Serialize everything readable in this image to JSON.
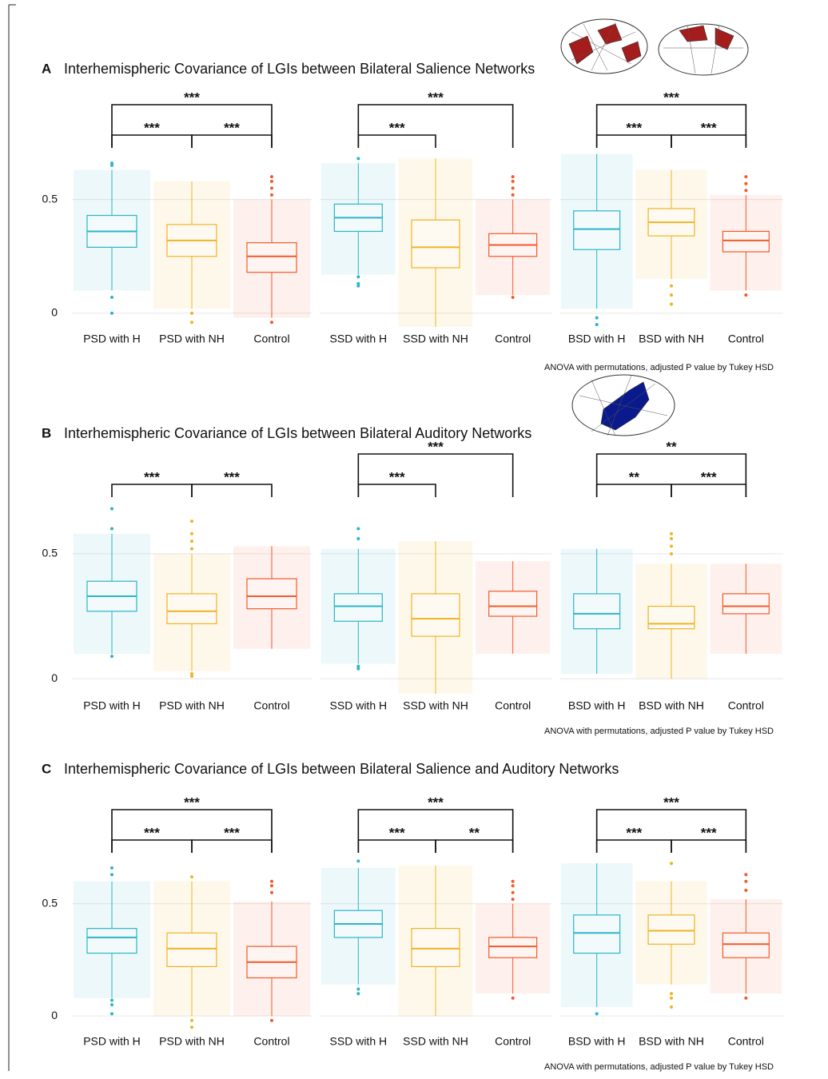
{
  "chart_data": [
    {
      "type": "box",
      "panel_label": "A",
      "title": "Interhemispheric Covariance of LGIs between Bilateral Salience Networks",
      "categories": [
        "PSD with H",
        "PSD with NH",
        "Control"
      ],
      "colors": [
        "#2cb5c9",
        "#f0b323",
        "#f15a2b"
      ],
      "boxes": [
        {
          "low": 0.1,
          "q1": 0.29,
          "median": 0.36,
          "q3": 0.43,
          "high": 0.63,
          "outliers": [
            0.65,
            0.66,
            0.07,
            0.0
          ]
        },
        {
          "low": 0.02,
          "q1": 0.25,
          "median": 0.32,
          "q3": 0.39,
          "high": 0.58,
          "outliers": [
            0.0,
            -0.04
          ]
        },
        {
          "low": -0.02,
          "q1": 0.18,
          "median": 0.25,
          "q3": 0.31,
          "high": 0.5,
          "outliers": [
            0.52,
            0.55,
            0.58,
            0.6,
            -0.04
          ]
        }
      ],
      "brackets": [
        {
          "from": 0,
          "to": 1,
          "label": "***"
        },
        {
          "from": 1,
          "to": 2,
          "label": "***"
        },
        {
          "from": 0,
          "to": 2,
          "label": "***"
        }
      ],
      "ylim": [
        -0.06,
        0.72
      ],
      "yticks": [
        0,
        0.5
      ],
      "grid": true
    },
    {
      "type": "box",
      "categories": [
        "SSD with H",
        "SSD with NH",
        "Control"
      ],
      "colors": [
        "#2cb5c9",
        "#f0b323",
        "#f15a2b"
      ],
      "boxes": [
        {
          "low": 0.17,
          "q1": 0.36,
          "median": 0.42,
          "q3": 0.48,
          "high": 0.66,
          "outliers": [
            0.68,
            0.16,
            0.13,
            0.12
          ]
        },
        {
          "low": -0.06,
          "q1": 0.2,
          "median": 0.29,
          "q3": 0.41,
          "high": 0.68,
          "outliers": []
        },
        {
          "low": 0.08,
          "q1": 0.25,
          "median": 0.3,
          "q3": 0.35,
          "high": 0.5,
          "outliers": [
            0.52,
            0.55,
            0.58,
            0.6,
            0.07
          ]
        }
      ],
      "brackets": [
        {
          "from": 0,
          "to": 1,
          "label": "***"
        },
        {
          "from": 0,
          "to": 2,
          "label": "***"
        }
      ],
      "ylim": [
        -0.06,
        0.72
      ],
      "yticks": [
        0,
        0.5
      ],
      "grid": true
    },
    {
      "type": "box",
      "categories": [
        "BSD with H",
        "BSD with NH",
        "Control"
      ],
      "colors": [
        "#2cb5c9",
        "#f0b323",
        "#f15a2b"
      ],
      "boxes": [
        {
          "low": 0.02,
          "q1": 0.28,
          "median": 0.37,
          "q3": 0.45,
          "high": 0.7,
          "outliers": [
            -0.02,
            -0.05
          ]
        },
        {
          "low": 0.15,
          "q1": 0.34,
          "median": 0.4,
          "q3": 0.46,
          "high": 0.63,
          "outliers": [
            0.12,
            0.08,
            0.04
          ]
        },
        {
          "low": 0.1,
          "q1": 0.27,
          "median": 0.32,
          "q3": 0.36,
          "high": 0.52,
          "outliers": [
            0.54,
            0.57,
            0.6,
            0.08
          ]
        }
      ],
      "brackets": [
        {
          "from": 0,
          "to": 1,
          "label": "***"
        },
        {
          "from": 1,
          "to": 2,
          "label": "***"
        },
        {
          "from": 0,
          "to": 2,
          "label": "***"
        }
      ],
      "ylim": [
        -0.06,
        0.72
      ],
      "yticks": [
        0,
        0.5
      ],
      "grid": true,
      "note": "ANOVA with permutations, adjusted P value by Tukey HSD"
    },
    {
      "type": "box",
      "panel_label": "B",
      "title": "Interhemispheric Covariance of LGIs between Bilateral Auditory Networks",
      "categories": [
        "PSD with H",
        "PSD with NH",
        "Control"
      ],
      "colors": [
        "#2cb5c9",
        "#f0b323",
        "#f15a2b"
      ],
      "boxes": [
        {
          "low": 0.1,
          "q1": 0.27,
          "median": 0.33,
          "q3": 0.39,
          "high": 0.58,
          "outliers": [
            0.6,
            0.68,
            0.09
          ]
        },
        {
          "low": 0.03,
          "q1": 0.22,
          "median": 0.27,
          "q3": 0.34,
          "high": 0.5,
          "outliers": [
            0.52,
            0.55,
            0.58,
            0.63,
            0.02,
            0.01
          ]
        },
        {
          "low": 0.12,
          "q1": 0.28,
          "median": 0.33,
          "q3": 0.4,
          "high": 0.53,
          "outliers": []
        }
      ],
      "brackets": [
        {
          "from": 0,
          "to": 1,
          "label": "***"
        },
        {
          "from": 1,
          "to": 2,
          "label": "***"
        }
      ],
      "ylim": [
        -0.06,
        0.72
      ],
      "yticks": [
        0,
        0.5
      ],
      "grid": true
    },
    {
      "type": "box",
      "categories": [
        "SSD with H",
        "SSD with NH",
        "Control"
      ],
      "colors": [
        "#2cb5c9",
        "#f0b323",
        "#f15a2b"
      ],
      "boxes": [
        {
          "low": 0.06,
          "q1": 0.23,
          "median": 0.29,
          "q3": 0.34,
          "high": 0.52,
          "outliers": [
            0.56,
            0.6,
            0.05,
            0.04
          ]
        },
        {
          "low": -0.06,
          "q1": 0.17,
          "median": 0.24,
          "q3": 0.34,
          "high": 0.55,
          "outliers": []
        },
        {
          "low": 0.1,
          "q1": 0.25,
          "median": 0.29,
          "q3": 0.35,
          "high": 0.47,
          "outliers": []
        }
      ],
      "brackets": [
        {
          "from": 0,
          "to": 1,
          "label": "***"
        },
        {
          "from": 0,
          "to": 2,
          "label": "***"
        }
      ],
      "ylim": [
        -0.06,
        0.72
      ],
      "yticks": [
        0,
        0.5
      ],
      "grid": true
    },
    {
      "type": "box",
      "categories": [
        "BSD with H",
        "BSD with NH",
        "Control"
      ],
      "colors": [
        "#2cb5c9",
        "#f0b323",
        "#f15a2b"
      ],
      "boxes": [
        {
          "low": 0.02,
          "q1": 0.2,
          "median": 0.26,
          "q3": 0.34,
          "high": 0.52,
          "outliers": []
        },
        {
          "low": 0.0,
          "q1": 0.2,
          "median": 0.22,
          "q3": 0.29,
          "high": 0.46,
          "outliers": [
            0.5,
            0.53,
            0.56,
            0.58
          ]
        },
        {
          "low": 0.1,
          "q1": 0.26,
          "median": 0.29,
          "q3": 0.34,
          "high": 0.46,
          "outliers": []
        }
      ],
      "brackets": [
        {
          "from": 0,
          "to": 1,
          "label": "**"
        },
        {
          "from": 1,
          "to": 2,
          "label": "***"
        },
        {
          "from": 0,
          "to": 2,
          "label": "**"
        }
      ],
      "ylim": [
        -0.06,
        0.72
      ],
      "yticks": [
        0,
        0.5
      ],
      "grid": true,
      "note": "ANOVA with permutations, adjusted P value by Tukey HSD"
    },
    {
      "type": "box",
      "panel_label": "C",
      "title": "Interhemispheric Covariance of LGIs between Bilateral Salience and Auditory Networks",
      "categories": [
        "PSD with H",
        "PSD with NH",
        "Control"
      ],
      "colors": [
        "#2cb5c9",
        "#f0b323",
        "#f15a2b"
      ],
      "boxes": [
        {
          "low": 0.08,
          "q1": 0.28,
          "median": 0.35,
          "q3": 0.39,
          "high": 0.6,
          "outliers": [
            0.63,
            0.66,
            0.07,
            0.05,
            0.01
          ]
        },
        {
          "low": 0.0,
          "q1": 0.22,
          "median": 0.3,
          "q3": 0.37,
          "high": 0.6,
          "outliers": [
            0.62,
            -0.02,
            -0.05
          ]
        },
        {
          "low": 0.0,
          "q1": 0.17,
          "median": 0.24,
          "q3": 0.31,
          "high": 0.51,
          "outliers": [
            0.55,
            0.58,
            0.6,
            -0.02
          ]
        }
      ],
      "brackets": [
        {
          "from": 0,
          "to": 1,
          "label": "***"
        },
        {
          "from": 1,
          "to": 2,
          "label": "***"
        },
        {
          "from": 0,
          "to": 2,
          "label": "***"
        }
      ],
      "ylim": [
        -0.06,
        0.72
      ],
      "yticks": [
        0,
        0.5
      ],
      "grid": true
    },
    {
      "type": "box",
      "categories": [
        "SSD with H",
        "SSD with NH",
        "Control"
      ],
      "colors": [
        "#2cb5c9",
        "#f0b323",
        "#f15a2b"
      ],
      "boxes": [
        {
          "low": 0.14,
          "q1": 0.35,
          "median": 0.41,
          "q3": 0.47,
          "high": 0.66,
          "outliers": [
            0.69,
            0.12,
            0.1
          ]
        },
        {
          "low": 0.0,
          "q1": 0.22,
          "median": 0.3,
          "q3": 0.39,
          "high": 0.67,
          "outliers": []
        },
        {
          "low": 0.1,
          "q1": 0.26,
          "median": 0.31,
          "q3": 0.35,
          "high": 0.5,
          "outliers": [
            0.52,
            0.55,
            0.58,
            0.6,
            0.08
          ]
        }
      ],
      "brackets": [
        {
          "from": 0,
          "to": 1,
          "label": "***"
        },
        {
          "from": 1,
          "to": 2,
          "label": "**"
        },
        {
          "from": 0,
          "to": 2,
          "label": "***"
        }
      ],
      "ylim": [
        -0.06,
        0.72
      ],
      "yticks": [
        0,
        0.5
      ],
      "grid": true
    },
    {
      "type": "box",
      "categories": [
        "BSD with H",
        "BSD with NH",
        "Control"
      ],
      "colors": [
        "#2cb5c9",
        "#f0b323",
        "#f15a2b"
      ],
      "boxes": [
        {
          "low": 0.04,
          "q1": 0.28,
          "median": 0.37,
          "q3": 0.45,
          "high": 0.68,
          "outliers": [
            0.01
          ]
        },
        {
          "low": 0.14,
          "q1": 0.32,
          "median": 0.38,
          "q3": 0.45,
          "high": 0.6,
          "outliers": [
            0.68,
            0.1,
            0.08,
            0.04
          ]
        },
        {
          "low": 0.1,
          "q1": 0.26,
          "median": 0.32,
          "q3": 0.37,
          "high": 0.52,
          "outliers": [
            0.56,
            0.6,
            0.63,
            0.08
          ]
        }
      ],
      "brackets": [
        {
          "from": 0,
          "to": 1,
          "label": "***"
        },
        {
          "from": 1,
          "to": 2,
          "label": "***"
        },
        {
          "from": 0,
          "to": 2,
          "label": "***"
        }
      ],
      "ylim": [
        -0.06,
        0.72
      ],
      "yticks": [
        0,
        0.5
      ],
      "grid": true,
      "note": "ANOVA with permutations, adjusted P value by Tukey HSD"
    }
  ]
}
